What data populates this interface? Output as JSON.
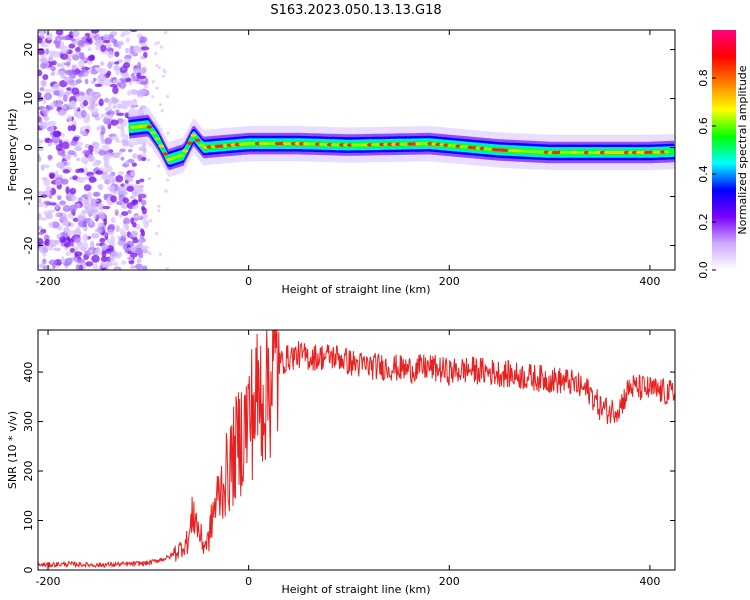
{
  "title": "S163.2023.050.13.13.G18",
  "chart_data": [
    {
      "type": "heatmap",
      "xlabel": "Height of straight line (km)",
      "ylabel": "Frequency (Hz)",
      "xlim": [
        -210,
        425
      ],
      "ylim": [
        -25,
        24
      ],
      "xticks": [
        -200,
        0,
        200,
        400
      ],
      "yticks": [
        -20,
        -10,
        0,
        10,
        20
      ],
      "colorbar": {
        "label": "Normalized spectral amplitude",
        "range": [
          0,
          1
        ],
        "ticks": [
          0.0,
          0.2,
          0.4,
          0.6,
          0.8
        ],
        "tick_labels": [
          "0.0",
          "0.2",
          "0.4",
          "0.6",
          "0.8"
        ],
        "colors": [
          "#ffffff",
          "#cfa8ff",
          "#7a00ff",
          "#0000ff",
          "#00ffff",
          "#00ff00",
          "#ffff00",
          "#ff7f00",
          "#ff0000",
          "#ff0080"
        ]
      },
      "ridge_track": [
        {
          "x": -120,
          "freq": 4.0
        },
        {
          "x": -100,
          "freq": 4.5
        },
        {
          "x": -90,
          "freq": 1.5
        },
        {
          "x": -80,
          "freq": -2.5
        },
        {
          "x": -65,
          "freq": -1.5
        },
        {
          "x": -55,
          "freq": 2.5
        },
        {
          "x": -45,
          "freq": 0.0
        },
        {
          "x": 0,
          "freq": 0.8
        },
        {
          "x": 50,
          "freq": 0.8
        },
        {
          "x": 100,
          "freq": 0.5
        },
        {
          "x": 180,
          "freq": 0.8
        },
        {
          "x": 250,
          "freq": -0.5
        },
        {
          "x": 300,
          "freq": -1.0
        },
        {
          "x": 400,
          "freq": -1.0
        },
        {
          "x": 425,
          "freq": -0.8
        }
      ],
      "noise_region_x": [
        -210,
        -110
      ]
    },
    {
      "type": "line",
      "xlabel": "Height of straight line (km)",
      "ylabel": "SNR (10 * v/v)",
      "xlim": [
        -210,
        425
      ],
      "ylim": [
        0,
        485
      ],
      "xticks": [
        -200,
        0,
        200,
        400
      ],
      "yticks": [
        0,
        100,
        200,
        300,
        400
      ],
      "color": "#e82020",
      "series": [
        {
          "x": [
            -210,
            -180,
            -150,
            -120,
            -100,
            -90,
            -80,
            -70,
            -60,
            -55,
            -50,
            -45,
            -40,
            -35,
            -30,
            -25,
            -20,
            -15,
            -10,
            -5,
            0,
            5,
            10,
            15,
            20,
            25,
            30,
            40,
            50,
            60,
            70,
            80,
            90,
            100,
            110,
            120,
            140,
            160,
            180,
            200,
            220,
            240,
            260,
            280,
            300,
            320,
            340,
            350,
            360,
            370,
            380,
            400,
            425
          ],
          "y": [
            10,
            12,
            10,
            12,
            14,
            20,
            25,
            40,
            60,
            120,
            80,
            50,
            60,
            120,
            150,
            180,
            200,
            230,
            260,
            280,
            310,
            330,
            350,
            370,
            390,
            400,
            415,
            430,
            435,
            430,
            430,
            432,
            430,
            420,
            415,
            412,
            410,
            405,
            410,
            400,
            405,
            400,
            395,
            390,
            385,
            380,
            360,
            330,
            320,
            330,
            370,
            365,
            355
          ]
        }
      ]
    }
  ]
}
